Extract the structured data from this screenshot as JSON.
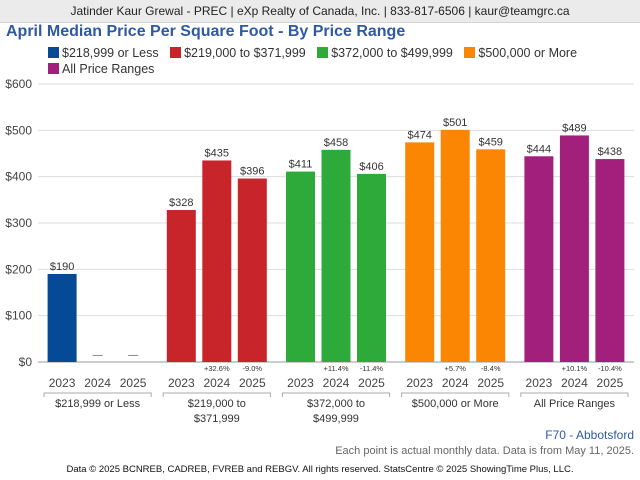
{
  "header": {
    "text": "Jatinder Kaur Grewal - PREC | eXp Realty of Canada, Inc. | 833-817-6506 | kaur@teamgrc.ca"
  },
  "chart_data": {
    "type": "bar",
    "title": "April Median Price Per Square Foot - By Price Range",
    "xlabel": "",
    "ylabel": "",
    "ylim": [
      0,
      600
    ],
    "y_ticks": [
      "$0",
      "$100",
      "$200",
      "$300",
      "$400",
      "$500",
      "$600"
    ],
    "grid": true,
    "legend_position": "top",
    "year_labels": [
      "2023",
      "2024",
      "2025"
    ],
    "groups": [
      {
        "name": "$218,999 or Less",
        "label_lines": [
          "$218,999 or Less"
        ],
        "color": "#044a96",
        "values": [
          190,
          null,
          null
        ],
        "value_labels": [
          "$190",
          "—",
          "—"
        ],
        "change_labels": [
          "",
          "",
          ""
        ]
      },
      {
        "name": "$219,000 to $371,999",
        "label_lines": [
          "$219,000 to",
          "$371,999"
        ],
        "color": "#c8252a",
        "values": [
          328,
          435,
          396
        ],
        "value_labels": [
          "$328",
          "$435",
          "$396"
        ],
        "change_labels": [
          "",
          "+32.6%",
          "-9.0%"
        ]
      },
      {
        "name": "$372,000 to $499,999",
        "label_lines": [
          "$372,000 to",
          "$499,999"
        ],
        "color": "#2eaa3b",
        "values": [
          411,
          458,
          406
        ],
        "value_labels": [
          "$411",
          "$458",
          "$406"
        ],
        "change_labels": [
          "",
          "+11.4%",
          "-11.4%"
        ]
      },
      {
        "name": "$500,000 or More",
        "label_lines": [
          "$500,000 or More"
        ],
        "color": "#fb8604",
        "values": [
          474,
          501,
          459
        ],
        "value_labels": [
          "$474",
          "$501",
          "$459"
        ],
        "change_labels": [
          "",
          "+5.7%",
          "-8.4%"
        ]
      },
      {
        "name": "All Price Ranges",
        "label_lines": [
          "All Price Ranges"
        ],
        "color": "#a21f7c",
        "values": [
          444,
          489,
          438
        ],
        "value_labels": [
          "$444",
          "$489",
          "$438"
        ],
        "change_labels": [
          "",
          "+10.1%",
          "-10.4%"
        ]
      }
    ]
  },
  "footer": {
    "area_label": "F70 - Abbotsford",
    "note": "Each point is actual monthly data. Data is from May 11, 2025.",
    "copyright": "Data © 2025 BCNREB, CADREB, FVREB and REBGV. All rights reserved. StatsCentre © 2025 ShowingTime Plus, LLC."
  }
}
